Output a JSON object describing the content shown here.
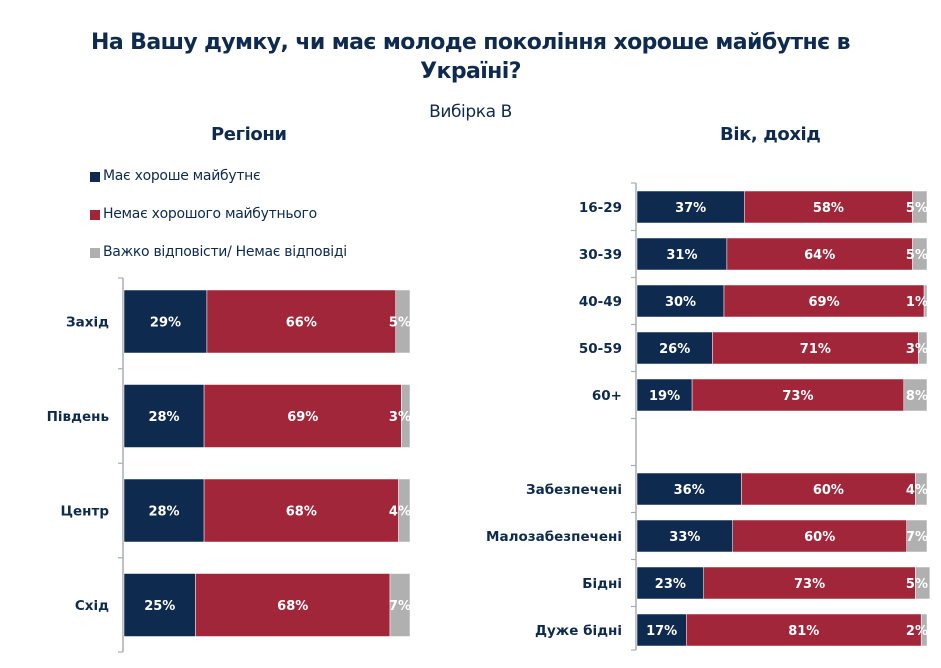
{
  "title": "На Вашу думку, чи має молоде покоління хороше майбутнє в Україні?",
  "subtitle": "Вибірка В",
  "colors": {
    "good": "#0e2a4f",
    "no_good": "#a12639",
    "hard": "#b0b0b0",
    "axis": "#a8adb5",
    "text": "#0e2a4f"
  },
  "legend": [
    {
      "label": "Має хороше майбутнє",
      "color": "#0e2a4f"
    },
    {
      "label": "Немає хорошого майбутнього",
      "color": "#a12639"
    },
    {
      "label": "Важко відповісти/ Немає відповіді",
      "color": "#b0b0b0"
    }
  ],
  "chart_data": [
    {
      "type": "bar",
      "orientation": "horizontal",
      "stacked": true,
      "title": "Регіони",
      "xlabel": "",
      "ylabel": "",
      "xlim": [
        0,
        100
      ],
      "legend": "top-left",
      "categories": [
        "Захід",
        "Південь",
        "Центр",
        "Схід"
      ],
      "series": [
        {
          "name": "Має хороше майбутнє",
          "values": [
            29,
            28,
            28,
            25
          ]
        },
        {
          "name": "Немає хорошого майбутнього",
          "values": [
            66,
            69,
            68,
            68
          ]
        },
        {
          "name": "Важко відповісти/ Немає відповіді",
          "values": [
            5,
            3,
            4,
            7
          ]
        }
      ]
    },
    {
      "type": "bar",
      "orientation": "horizontal",
      "stacked": true,
      "title": "Вік, дохід",
      "xlabel": "",
      "ylabel": "",
      "xlim": [
        0,
        100
      ],
      "categories": [
        "16-29",
        "30-39",
        "40-49",
        "50-59",
        "60+",
        "",
        "Забезпечені",
        "Малозабезпечені",
        "Бідні",
        "Дуже бідні"
      ],
      "series": [
        {
          "name": "Має хороше майбутнє",
          "values": [
            37,
            31,
            30,
            26,
            19,
            null,
            36,
            33,
            23,
            17
          ]
        },
        {
          "name": "Немає хорошого майбутнього",
          "values": [
            58,
            64,
            69,
            71,
            73,
            null,
            60,
            60,
            73,
            81
          ]
        },
        {
          "name": "Важко відповісти/ Немає відповіді",
          "values": [
            5,
            5,
            1,
            3,
            8,
            null,
            4,
            7,
            5,
            2
          ]
        }
      ]
    }
  ]
}
